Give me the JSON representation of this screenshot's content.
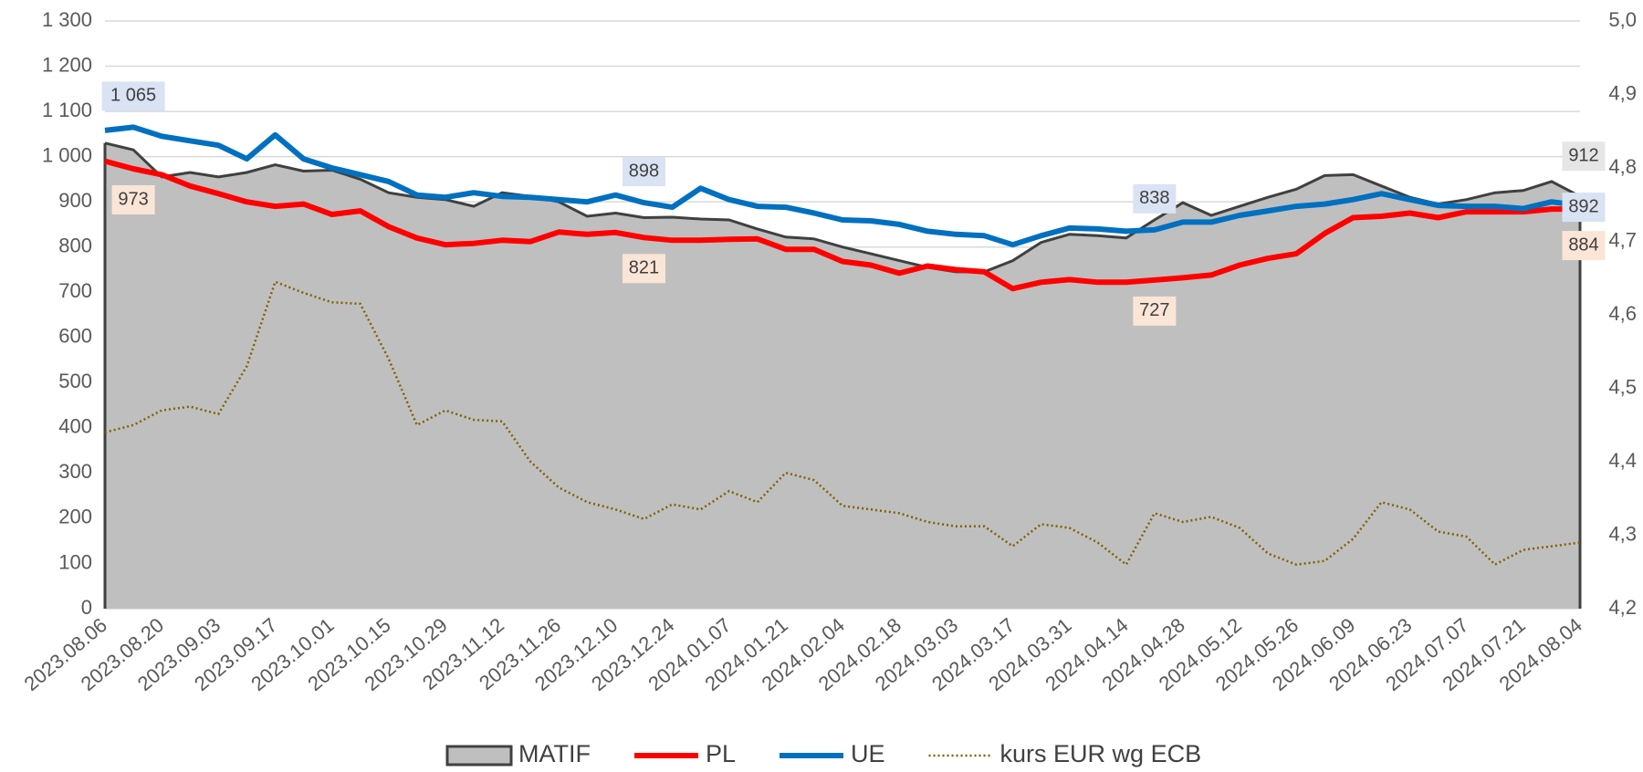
{
  "chart_data": {
    "type": "line",
    "categories": [
      "2023.08.06",
      null,
      "2023.08.20",
      null,
      "2023.09.03",
      null,
      "2023.09.17",
      null,
      "2023.10.01",
      null,
      "2023.10.15",
      null,
      "2023.10.29",
      null,
      "2023.11.12",
      null,
      "2023.11.26",
      null,
      "2023.12.10",
      null,
      "2023.12.24",
      null,
      "2024.01.07",
      null,
      "2024.01.21",
      null,
      "2024.02.04",
      null,
      "2024.02.18",
      null,
      "2024.03.03",
      null,
      "2024.03.17",
      null,
      "2024.03.31",
      null,
      "2024.04.14",
      null,
      "2024.04.28",
      null,
      "2024.05.12",
      null,
      "2024.05.26",
      null,
      "2024.06.09",
      null,
      "2024.06.23",
      null,
      "2024.07.07",
      null,
      "2024.07.21",
      null,
      "2024.08.04"
    ],
    "series": [
      {
        "name": "MATIF",
        "type": "area",
        "color": "#bfbfbf",
        "line_color": "#404040",
        "values": [
          1030,
          1015,
          955,
          965,
          955,
          965,
          982,
          968,
          970,
          950,
          920,
          910,
          905,
          890,
          920,
          912,
          900,
          868,
          875,
          865,
          866,
          862,
          860,
          840,
          822,
          818,
          800,
          785,
          770,
          755,
          745,
          745,
          770,
          810,
          828,
          825,
          820,
          860,
          898,
          870,
          890,
          910,
          928,
          958,
          960,
          935,
          910,
          895,
          905,
          920,
          925,
          945,
          912
        ],
        "value_labels": [
          null,
          null,
          null,
          null,
          null,
          null,
          null,
          null,
          null,
          null,
          null,
          null,
          null,
          null,
          null,
          null,
          null,
          null,
          null,
          null,
          null,
          null,
          null,
          null,
          null,
          null,
          null,
          null,
          null,
          null,
          null,
          null,
          null,
          null,
          null,
          null,
          null,
          null,
          null,
          null,
          null,
          null,
          null,
          null,
          null,
          null,
          null,
          null,
          null,
          null,
          null,
          null,
          "912"
        ]
      },
      {
        "name": "PL",
        "type": "line",
        "color": "#ff0000",
        "values": [
          990,
          973,
          960,
          935,
          918,
          900,
          890,
          895,
          872,
          880,
          845,
          820,
          805,
          808,
          815,
          812,
          833,
          828,
          832,
          821,
          815,
          815,
          817,
          818,
          795,
          795,
          768,
          760,
          742,
          758,
          750,
          745,
          708,
          722,
          728,
          722,
          722,
          727,
          732,
          738,
          760,
          775,
          785,
          830,
          865,
          868,
          875,
          865,
          878,
          878,
          878,
          884,
          884
        ],
        "value_labels": [
          null,
          "973",
          null,
          null,
          null,
          null,
          null,
          null,
          null,
          null,
          null,
          null,
          null,
          null,
          null,
          null,
          null,
          null,
          null,
          "821",
          null,
          null,
          null,
          null,
          null,
          null,
          null,
          null,
          null,
          null,
          null,
          null,
          null,
          null,
          null,
          null,
          null,
          "727",
          null,
          null,
          null,
          null,
          null,
          null,
          null,
          null,
          null,
          null,
          null,
          null,
          null,
          null,
          "884"
        ]
      },
      {
        "name": "UE",
        "type": "line",
        "color": "#0070c0",
        "values": [
          1058,
          1065,
          1045,
          1035,
          1025,
          995,
          1048,
          995,
          975,
          960,
          945,
          915,
          910,
          920,
          912,
          910,
          905,
          900,
          915,
          898,
          888,
          930,
          905,
          890,
          888,
          875,
          860,
          858,
          850,
          835,
          828,
          825,
          805,
          825,
          842,
          840,
          835,
          838,
          855,
          855,
          870,
          880,
          890,
          895,
          905,
          918,
          905,
          892,
          890,
          890,
          885,
          900,
          892
        ],
        "value_labels": [
          null,
          "1 065",
          null,
          null,
          null,
          null,
          null,
          null,
          null,
          null,
          null,
          null,
          null,
          null,
          null,
          null,
          null,
          null,
          null,
          "898",
          null,
          null,
          null,
          null,
          null,
          null,
          null,
          null,
          null,
          null,
          null,
          null,
          null,
          null,
          null,
          null,
          null,
          "838",
          null,
          null,
          null,
          null,
          null,
          null,
          null,
          null,
          null,
          null,
          null,
          null,
          null,
          null,
          "892"
        ]
      },
      {
        "name": "kurs EUR wg ECB",
        "type": "dotted",
        "axis": "y2",
        "color": "#806000",
        "values": [
          4.44,
          4.45,
          4.47,
          4.475,
          4.465,
          4.53,
          4.645,
          4.63,
          4.617,
          4.615,
          4.54,
          4.45,
          4.47,
          4.457,
          4.455,
          4.4,
          4.365,
          4.345,
          4.335,
          4.322,
          4.342,
          4.335,
          4.36,
          4.345,
          4.385,
          4.375,
          4.34,
          4.335,
          4.33,
          4.318,
          4.312,
          4.312,
          4.285,
          4.315,
          4.31,
          4.29,
          4.26,
          4.33,
          4.318,
          4.325,
          4.31,
          4.275,
          4.26,
          4.265,
          4.295,
          4.345,
          4.335,
          4.305,
          4.298,
          4.26,
          4.28,
          4.285,
          4.29
        ]
      }
    ],
    "ylim": [
      0,
      1300
    ],
    "yticks": [
      0,
      100,
      200,
      300,
      400,
      500,
      600,
      700,
      800,
      900,
      {
        "value": 1000,
        "label": "1 000"
      },
      {
        "value": 1100,
        "label": "1 100"
      },
      {
        "value": 1200,
        "label": "1 200"
      },
      {
        "value": 1300,
        "label": "1 300"
      }
    ],
    "y2lim": [
      4.2,
      5.0
    ],
    "y2ticks": [
      {
        "value": 4.2,
        "label": "4,2"
      },
      {
        "value": 4.3,
        "label": "4,3"
      },
      {
        "value": 4.4,
        "label": "4,4"
      },
      {
        "value": 4.5,
        "label": "4,5"
      },
      {
        "value": 4.6,
        "label": "4,6"
      },
      {
        "value": 4.7,
        "label": "4,7"
      },
      {
        "value": 4.8,
        "label": "4,8"
      },
      {
        "value": 4.9,
        "label": "4,9"
      },
      {
        "value": 5.0,
        "label": "5,0"
      }
    ],
    "grid": true,
    "legend": "bottom"
  }
}
